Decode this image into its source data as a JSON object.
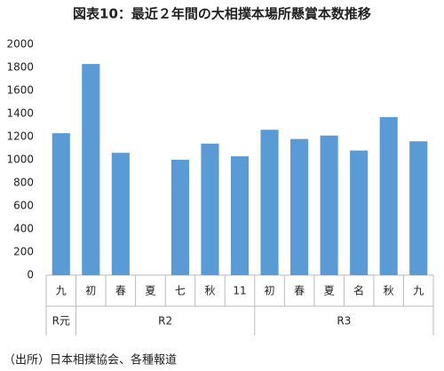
{
  "chart_data": {
    "type": "bar",
    "title": "図表10：最近２年間の大相撲本場所懸賞本数推移",
    "source": "（出所）日本相撲協会、各種報道",
    "color": "#5b9bd5",
    "ylim": [
      0,
      2000
    ],
    "yticks": [
      0,
      200,
      400,
      600,
      800,
      1000,
      1200,
      1400,
      1600,
      1800,
      2000
    ],
    "grid": false,
    "groups": [
      {
        "label": "R元",
        "categories": [
          "九"
        ],
        "values": [
          1230
        ]
      },
      {
        "label": "R2",
        "categories": [
          "初",
          "春",
          "夏",
          "七",
          "秋",
          "11"
        ],
        "values": [
          1830,
          1060,
          null,
          1000,
          1140,
          1030
        ]
      },
      {
        "label": "R3",
        "categories": [
          "初",
          "春",
          "夏",
          "名",
          "秋",
          "九"
        ],
        "values": [
          1260,
          1180,
          1210,
          1080,
          1370,
          1160
        ]
      }
    ]
  }
}
